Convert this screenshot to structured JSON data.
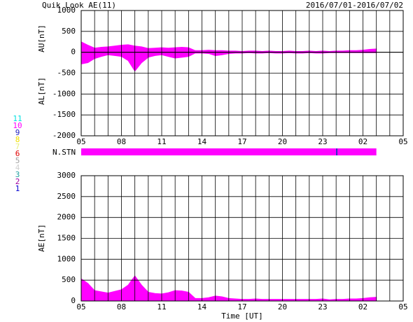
{
  "header": {
    "title": "Quik Look AE(11)",
    "date_range": "2016/07/01-2016/07/02"
  },
  "chart_data": [
    {
      "type": "area",
      "ylabels": [
        "AU[nT]",
        "AL[nT]"
      ],
      "x": [
        5,
        5.5,
        6,
        6.5,
        7,
        7.5,
        8,
        8.5,
        9,
        9.5,
        10,
        10.5,
        11,
        11.5,
        12,
        12.5,
        13,
        13.5,
        14,
        14.5,
        15,
        15.5,
        16,
        16.5,
        17,
        17.5,
        18,
        18.5,
        19,
        19.5,
        20,
        20.5,
        21,
        21.5,
        22,
        22.5,
        23,
        23.5,
        24,
        24.5,
        25,
        25.5,
        26,
        26.5,
        27
      ],
      "series": [
        {
          "color": "#ff00ff",
          "values": [
            250,
            170,
            100,
            120,
            130,
            150,
            170,
            180,
            150,
            130,
            90,
            100,
            110,
            100,
            110,
            120,
            110,
            40,
            40,
            50,
            40,
            40,
            30,
            30,
            20,
            30,
            30,
            20,
            30,
            20,
            20,
            30,
            20,
            20,
            30,
            20,
            30,
            20,
            30,
            30,
            40,
            40,
            50,
            70,
            80
          ]
        },
        {
          "color": "#ff00ff",
          "values": [
            -280,
            -250,
            -150,
            -100,
            -60,
            -80,
            -100,
            -200,
            -450,
            -250,
            -120,
            -80,
            -60,
            -100,
            -140,
            -120,
            -100,
            -20,
            -20,
            -30,
            -80,
            -60,
            -30,
            -20,
            -20,
            -10,
            -20,
            -20,
            -10,
            -20,
            -20,
            -10,
            -20,
            -20,
            -10,
            -20,
            -20,
            -10,
            -10,
            -10,
            -10,
            -10,
            -10,
            -10,
            -10
          ]
        }
      ],
      "xlim": [
        5,
        29
      ],
      "xticks": [
        {
          "value": 5,
          "label": "05"
        },
        {
          "value": 8,
          "label": "08"
        },
        11,
        14,
        17,
        20,
        23,
        {
          "value": 26,
          "label": "02"
        },
        {
          "value": 29,
          "label": "05"
        }
      ],
      "xgrid": [
        5,
        6,
        7,
        8,
        9,
        10,
        11,
        12,
        13,
        14,
        15,
        16,
        17,
        18,
        19,
        20,
        21,
        22,
        23,
        24,
        25,
        26,
        27,
        28,
        29
      ],
      "ylim": [
        -2000,
        1000
      ],
      "yticks": [
        1000,
        500,
        0,
        -500,
        -1000,
        -1500,
        -2000
      ],
      "grid": true
    },
    {
      "type": "area",
      "ylabels": [
        "AE[nT]"
      ],
      "xlabel": "Time [UT]",
      "x": [
        5,
        5.5,
        6,
        6.5,
        7,
        7.5,
        8,
        8.5,
        9,
        9.5,
        10,
        10.5,
        11,
        11.5,
        12,
        12.5,
        13,
        13.5,
        14,
        14.5,
        15,
        15.5,
        16,
        16.5,
        17,
        17.5,
        18,
        18.5,
        19,
        19.5,
        20,
        20.5,
        21,
        21.5,
        22,
        22.5,
        23,
        23.5,
        24,
        24.5,
        25,
        25.5,
        26,
        26.5,
        27
      ],
      "series": [
        {
          "color": "#ff00ff",
          "values": [
            530,
            420,
            250,
            220,
            190,
            230,
            270,
            380,
            600,
            380,
            210,
            180,
            170,
            200,
            250,
            240,
            210,
            60,
            60,
            80,
            120,
            100,
            60,
            50,
            40,
            40,
            50,
            40,
            40,
            40,
            40,
            40,
            40,
            40,
            40,
            40,
            50,
            30,
            40,
            40,
            50,
            50,
            60,
            80,
            90
          ]
        }
      ],
      "xlim": [
        5,
        29
      ],
      "xticks": [
        {
          "value": 5,
          "label": "05"
        },
        {
          "value": 8,
          "label": "08"
        },
        11,
        14,
        17,
        20,
        23,
        {
          "value": 26,
          "label": "02"
        },
        {
          "value": 29,
          "label": "05"
        }
      ],
      "xgrid": [
        5,
        6,
        7,
        8,
        9,
        10,
        11,
        12,
        13,
        14,
        15,
        16,
        17,
        18,
        19,
        20,
        21,
        22,
        23,
        24,
        25,
        26,
        27,
        28,
        29
      ],
      "ylim": [
        0,
        3000
      ],
      "yticks": [
        3000,
        2500,
        2000,
        1500,
        1000,
        500,
        0
      ],
      "grid": true
    }
  ],
  "station_count": {
    "label": "N.STN",
    "segments": [
      {
        "start": 5,
        "end": 24,
        "value": 10
      },
      {
        "start": 24,
        "end": 24.1,
        "value": 9
      },
      {
        "start": 24.1,
        "end": 27,
        "value": 10
      }
    ],
    "legend": [
      {
        "value": 11,
        "color": "#00e0e0"
      },
      {
        "value": 10,
        "color": "#ff00ff"
      },
      {
        "value": 9,
        "color": "#2020c0"
      },
      {
        "value": 8,
        "color": "#f0e000"
      },
      {
        "value": 7,
        "color": "#e8f080"
      },
      {
        "value": 6,
        "color": "#e00000"
      },
      {
        "value": 5,
        "color": "#a0a0a0"
      },
      {
        "value": 4,
        "color": "#d0d0d0"
      },
      {
        "value": 3,
        "color": "#20a0a0"
      },
      {
        "value": 2,
        "color": "#a000a0"
      },
      {
        "value": 1,
        "color": "#0000d0"
      }
    ]
  }
}
